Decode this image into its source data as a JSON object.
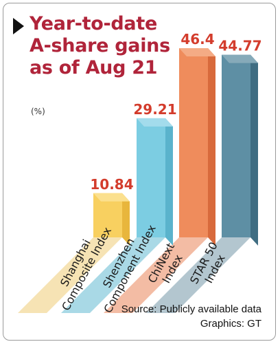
{
  "title": "Year-to-date A-share gains as of Aug 21",
  "unit": "(%)",
  "source": "Source: Publicly available data",
  "credit": "Graphics: GT",
  "chart_data": {
    "type": "bar",
    "title": "Year-to-date A-share gains as of Aug 21",
    "ylabel": "(%)",
    "categories": [
      [
        "Shanghai",
        "Composite Index"
      ],
      [
        "Shenzhen",
        "Component Index"
      ],
      [
        "ChiNext",
        "Index"
      ],
      [
        "STAR 50",
        "Index"
      ]
    ],
    "values": [
      10.84,
      29.21,
      46.4,
      44.77
    ],
    "value_labels": [
      "10.84",
      "29.21",
      "46.4",
      "44.77"
    ],
    "colors": {
      "front": [
        "#f8d060",
        "#7ccde2",
        "#ef8c5c",
        "#5e8fa4"
      ],
      "side": [
        "#e8b63c",
        "#5ab3cc",
        "#d86a3c",
        "#3f6d82"
      ],
      "top": [
        "#fbe08e",
        "#a3dcec",
        "#f4ab85",
        "#86aab9"
      ],
      "base": [
        "#f6e3b4",
        "#a9d9e6",
        "#f3bca4",
        "#b3c6cf"
      ],
      "value_label": "#d33c2c",
      "title": "#b0243a"
    }
  }
}
